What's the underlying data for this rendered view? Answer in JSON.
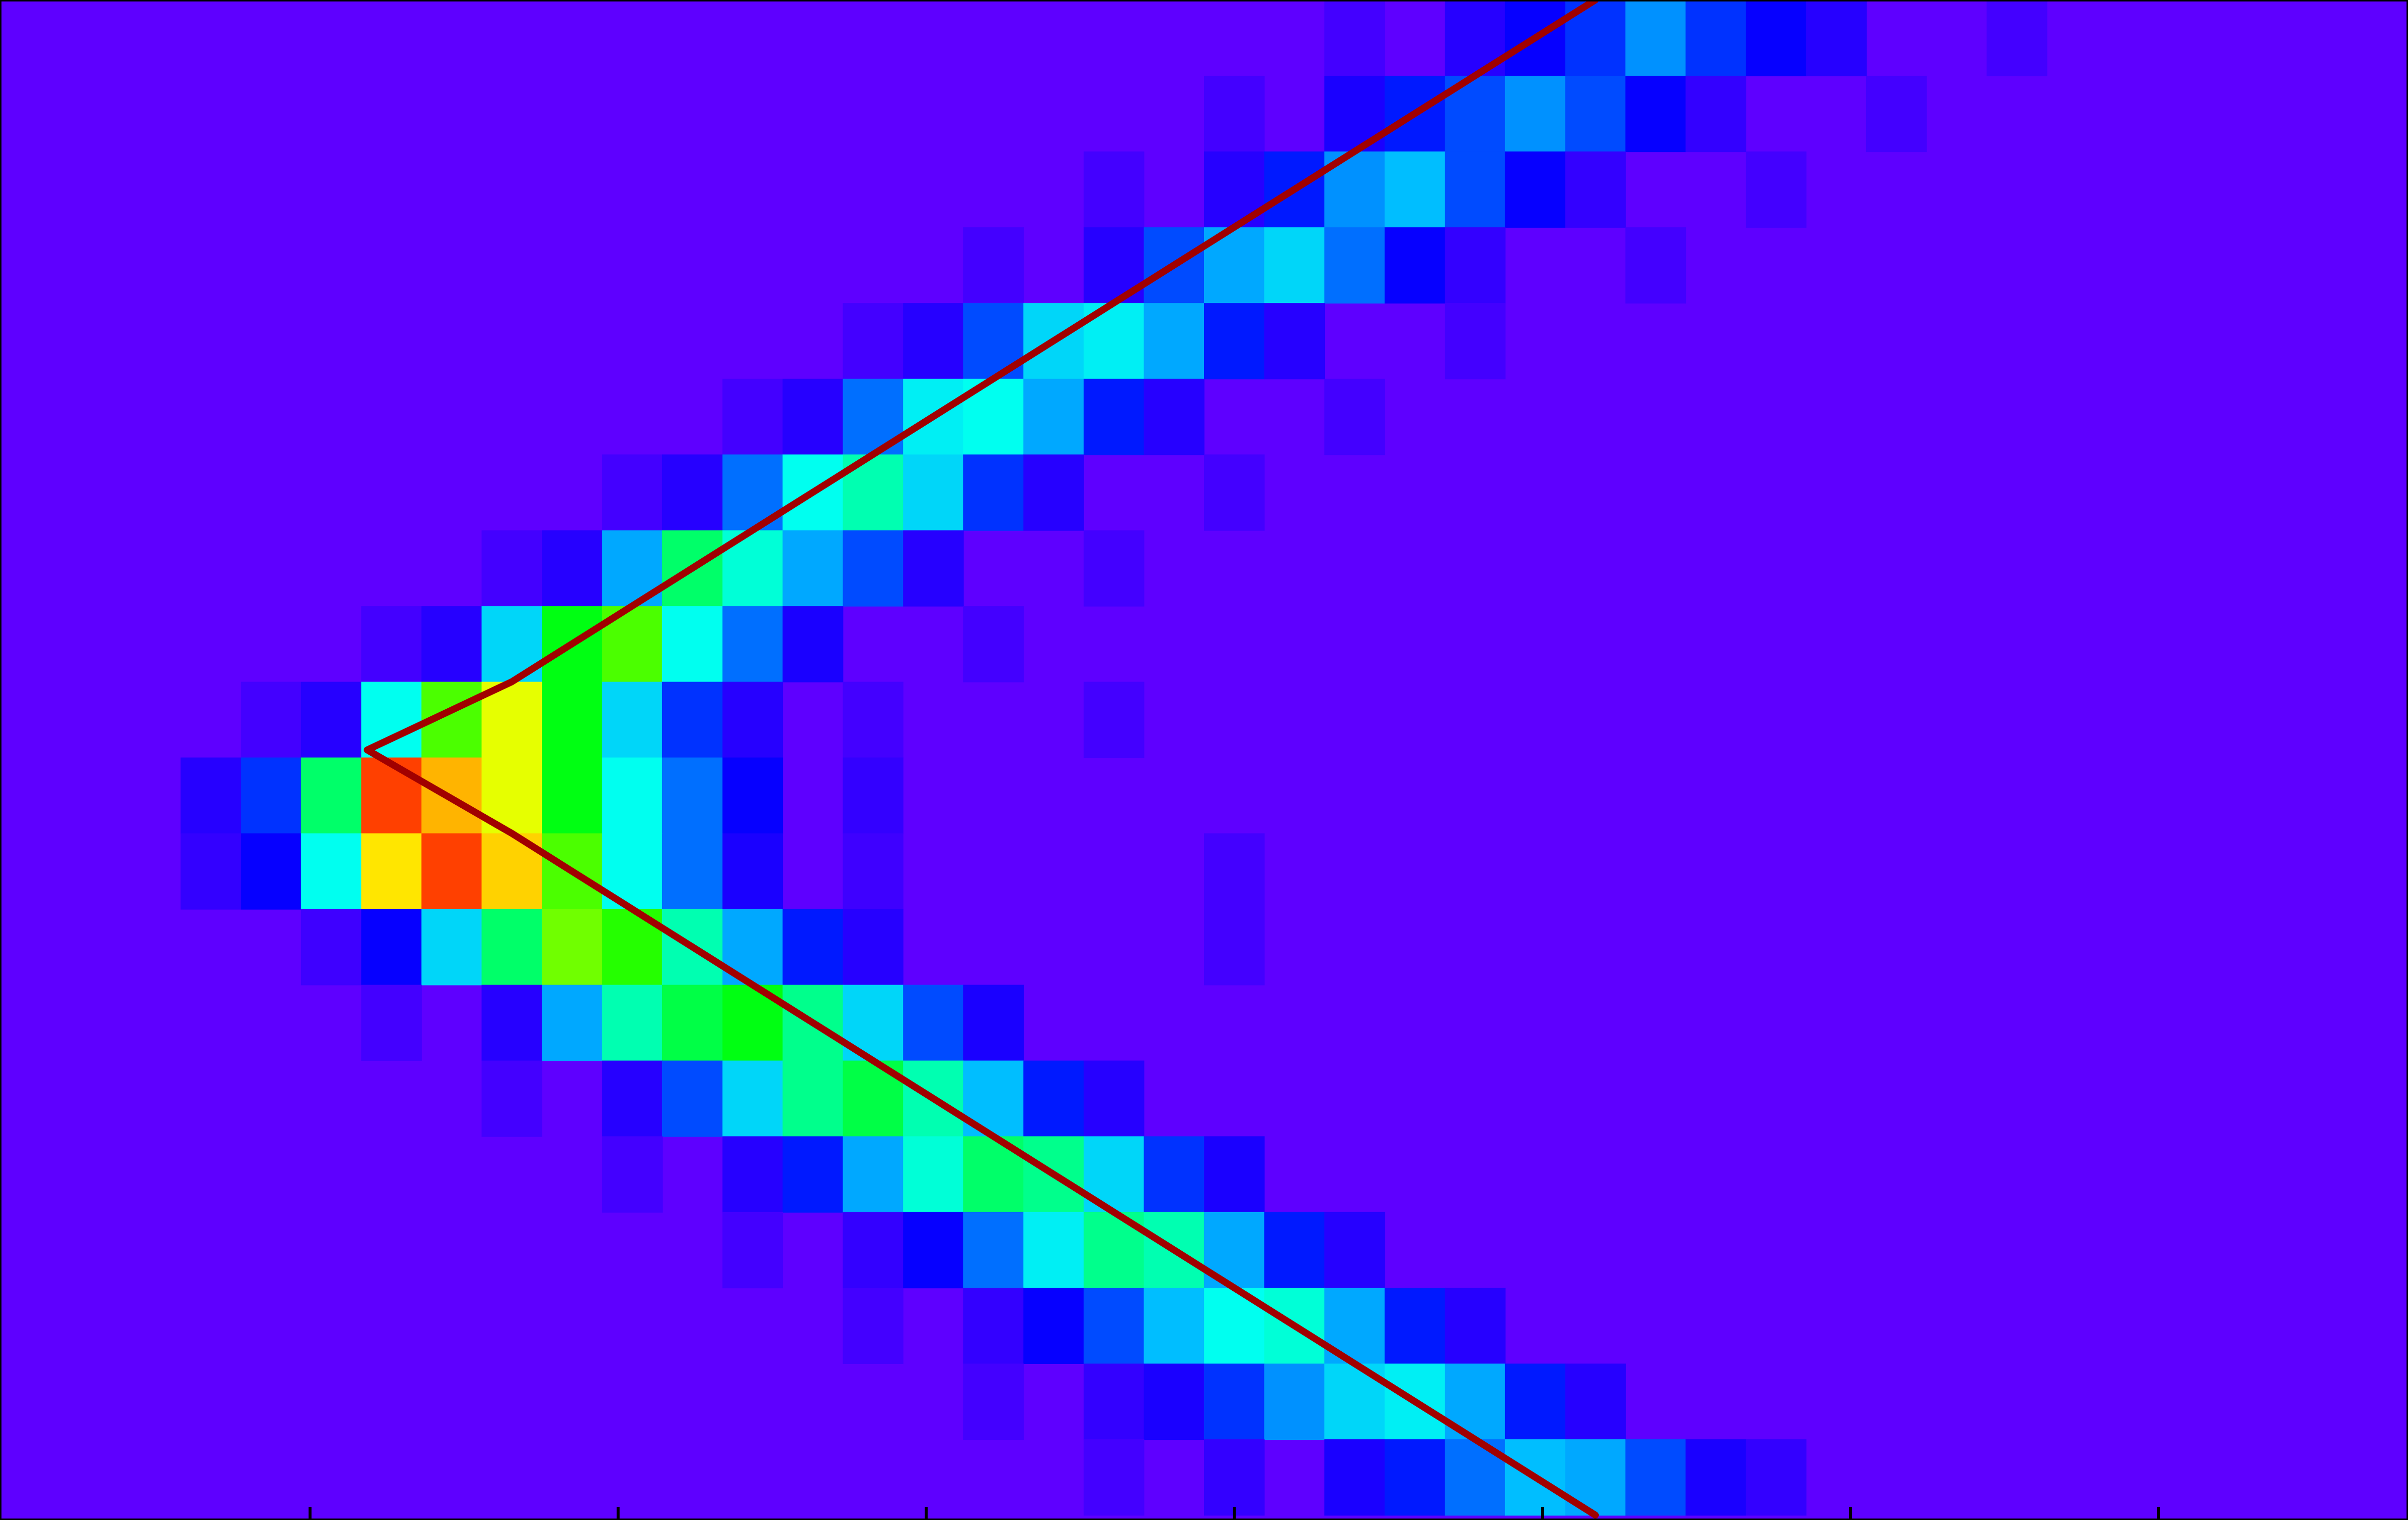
{
  "chart_data": {
    "type": "heatmap",
    "title": "",
    "xlabel": "",
    "ylabel": "",
    "grid": false,
    "x_ticks_visible": 7,
    "x_tick_labels": [],
    "colormap": "jet",
    "colors": {
      "background": "#5e00ff",
      "curve": "#a10000",
      "frame": "#000000"
    },
    "heatmap": {
      "rows": 20,
      "columns": 40,
      "cells": [
        [
          22,
          0.05
        ],
        [
          24,
          0.1
        ],
        [
          25,
          0.15
        ],
        [
          26,
          0.2
        ],
        [
          27,
          0.28
        ],
        [
          28,
          0.2
        ],
        [
          29,
          0.15
        ],
        [
          30,
          0.1
        ],
        [
          33,
          0.05
        ],
        [
          20,
          0.05
        ],
        [
          22,
          0.12
        ],
        [
          23,
          0.18
        ],
        [
          24,
          0.22
        ],
        [
          25,
          0.28
        ],
        [
          26,
          0.22
        ],
        [
          27,
          0.15
        ],
        [
          28,
          0.08
        ],
        [
          31,
          0.05
        ],
        [
          18,
          0.05
        ],
        [
          20,
          0.1
        ],
        [
          21,
          0.18
        ],
        [
          22,
          0.28
        ],
        [
          23,
          0.32
        ],
        [
          24,
          0.22
        ],
        [
          25,
          0.15
        ],
        [
          26,
          0.08
        ],
        [
          29,
          0.05
        ],
        [
          16,
          0.05
        ],
        [
          18,
          0.1
        ],
        [
          19,
          0.22
        ],
        [
          20,
          0.3
        ],
        [
          21,
          0.35
        ],
        [
          22,
          0.25
        ],
        [
          23,
          0.15
        ],
        [
          24,
          0.08
        ],
        [
          27,
          0.05
        ],
        [
          14,
          0.05
        ],
        [
          15,
          0.1
        ],
        [
          16,
          0.22
        ],
        [
          17,
          0.35
        ],
        [
          18,
          0.38
        ],
        [
          19,
          0.3
        ],
        [
          20,
          0.18
        ],
        [
          21,
          0.1
        ],
        [
          24,
          0.05
        ],
        [
          12,
          0.05
        ],
        [
          13,
          0.1
        ],
        [
          14,
          0.25
        ],
        [
          15,
          0.38
        ],
        [
          16,
          0.4
        ],
        [
          17,
          0.3
        ],
        [
          18,
          0.18
        ],
        [
          19,
          0.1
        ],
        [
          22,
          0.05
        ],
        [
          10,
          0.05
        ],
        [
          11,
          0.1
        ],
        [
          12,
          0.25
        ],
        [
          13,
          0.4
        ],
        [
          14,
          0.45
        ],
        [
          15,
          0.35
        ],
        [
          16,
          0.2
        ],
        [
          17,
          0.1
        ],
        [
          20,
          0.05
        ],
        [
          8,
          0.05
        ],
        [
          9,
          0.1
        ],
        [
          10,
          0.3
        ],
        [
          11,
          0.5
        ],
        [
          12,
          0.42
        ],
        [
          13,
          0.3
        ],
        [
          14,
          0.22
        ],
        [
          15,
          0.1
        ],
        [
          18,
          0.05
        ],
        [
          6,
          0.05
        ],
        [
          7,
          0.1
        ],
        [
          8,
          0.35
        ],
        [
          9,
          0.55
        ],
        [
          10,
          0.6
        ],
        [
          11,
          0.4
        ],
        [
          12,
          0.25
        ],
        [
          13,
          0.12
        ],
        [
          16,
          0.05
        ],
        [
          4,
          0.05
        ],
        [
          5,
          0.1
        ],
        [
          6,
          0.4
        ],
        [
          7,
          0.6
        ],
        [
          8,
          0.72
        ],
        [
          9,
          0.55
        ],
        [
          10,
          0.35
        ],
        [
          11,
          0.2
        ],
        [
          12,
          0.1
        ],
        [
          14,
          0.05
        ],
        [
          18,
          0.05
        ],
        [
          3,
          0.1
        ],
        [
          4,
          0.2
        ],
        [
          5,
          0.5
        ],
        [
          6,
          0.95
        ],
        [
          7,
          0.85
        ],
        [
          8,
          0.72
        ],
        [
          9,
          0.55
        ],
        [
          10,
          0.4
        ],
        [
          11,
          0.25
        ],
        [
          12,
          0.15
        ],
        [
          14,
          0.08
        ],
        [
          20,
          0.05
        ],
        [
          3,
          0.08
        ],
        [
          4,
          0.15
        ],
        [
          5,
          0.4
        ],
        [
          6,
          0.8
        ],
        [
          7,
          0.95
        ],
        [
          8,
          0.82
        ],
        [
          9,
          0.6
        ],
        [
          10,
          0.4
        ],
        [
          11,
          0.25
        ],
        [
          12,
          0.12
        ],
        [
          14,
          0.06
        ],
        [
          20,
          0.05
        ],
        [
          5,
          0.06
        ],
        [
          6,
          0.15
        ],
        [
          7,
          0.35
        ],
        [
          8,
          0.5
        ],
        [
          9,
          0.62
        ],
        [
          10,
          0.58
        ],
        [
          11,
          0.45
        ],
        [
          12,
          0.3
        ],
        [
          13,
          0.18
        ],
        [
          14,
          0.1
        ],
        [
          16,
          0.05
        ],
        [
          6,
          0.05
        ],
        [
          8,
          0.1
        ],
        [
          9,
          0.3
        ],
        [
          10,
          0.45
        ],
        [
          11,
          0.52
        ],
        [
          12,
          0.55
        ],
        [
          13,
          0.48
        ],
        [
          14,
          0.35
        ],
        [
          15,
          0.22
        ],
        [
          16,
          0.12
        ],
        [
          18,
          0.05
        ],
        [
          8,
          0.05
        ],
        [
          10,
          0.1
        ],
        [
          11,
          0.22
        ],
        [
          12,
          0.35
        ],
        [
          13,
          0.48
        ],
        [
          14,
          0.52
        ],
        [
          15,
          0.45
        ],
        [
          16,
          0.32
        ],
        [
          17,
          0.18
        ],
        [
          18,
          0.1
        ],
        [
          20,
          0.05
        ],
        [
          10,
          0.05
        ],
        [
          12,
          0.1
        ],
        [
          13,
          0.18
        ],
        [
          14,
          0.3
        ],
        [
          15,
          0.42
        ],
        [
          16,
          0.5
        ],
        [
          17,
          0.48
        ],
        [
          18,
          0.35
        ],
        [
          19,
          0.2
        ],
        [
          20,
          0.12
        ],
        [
          22,
          0.05
        ],
        [
          12,
          0.05
        ],
        [
          14,
          0.08
        ],
        [
          15,
          0.15
        ],
        [
          16,
          0.25
        ],
        [
          17,
          0.38
        ],
        [
          18,
          0.48
        ],
        [
          19,
          0.45
        ],
        [
          20,
          0.3
        ],
        [
          21,
          0.18
        ],
        [
          22,
          0.1
        ],
        [
          24,
          0.05
        ],
        [
          14,
          0.05
        ],
        [
          16,
          0.08
        ],
        [
          17,
          0.15
        ],
        [
          18,
          0.22
        ],
        [
          19,
          0.32
        ],
        [
          20,
          0.4
        ],
        [
          21,
          0.42
        ],
        [
          22,
          0.3
        ],
        [
          23,
          0.18
        ],
        [
          24,
          0.1
        ],
        [
          26,
          0.05
        ],
        [
          16,
          0.05
        ],
        [
          18,
          0.08
        ],
        [
          19,
          0.12
        ],
        [
          20,
          0.2
        ],
        [
          21,
          0.28
        ],
        [
          22,
          0.35
        ],
        [
          23,
          0.38
        ],
        [
          24,
          0.3
        ],
        [
          25,
          0.18
        ],
        [
          26,
          0.1
        ],
        [
          28,
          0.05
        ],
        [
          18,
          0.05
        ],
        [
          20,
          0.08
        ],
        [
          22,
          0.12
        ],
        [
          23,
          0.18
        ],
        [
          24,
          0.25
        ],
        [
          25,
          0.32
        ],
        [
          26,
          0.3
        ],
        [
          27,
          0.22
        ],
        [
          28,
          0.12
        ],
        [
          29,
          0.08
        ],
        [
          31,
          0.05
        ]
      ],
      "row_starts": [
        0,
        9,
        18,
        27,
        36,
        45,
        54,
        63,
        72,
        81,
        92,
        103,
        115,
        126,
        137,
        148,
        159,
        170,
        181,
        192,
        203
      ]
    },
    "series": [
      {
        "type": "line",
        "x": [
          26.5,
          23.5,
          20.5,
          17.5,
          14.5,
          11.5,
          8.5,
          6.1,
          8.5,
          11.5,
          14.5,
          17.5,
          20.5,
          23.5,
          26.5
        ],
        "y": [
          0,
          1.5,
          3,
          4.5,
          6,
          7.5,
          9,
          9.9,
          11,
          12.5,
          14,
          15.5,
          17,
          18.5,
          20
        ]
      }
    ],
    "xlim": [
      0,
      40
    ],
    "ylim": [
      0,
      20
    ]
  }
}
